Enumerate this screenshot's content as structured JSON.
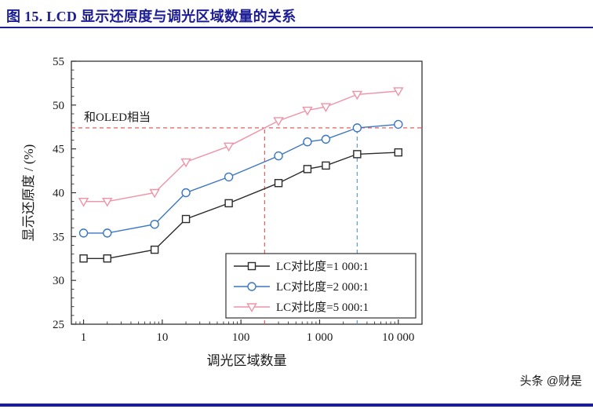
{
  "header": {
    "title": "图 15. LCD 显示还原度与调光区域数量的关系"
  },
  "footer": {
    "watermark": "头条 @财是"
  },
  "theme": {
    "accent": "#1c1c94",
    "frame_color": "#333333",
    "red_dash": "#e06060",
    "blue_dash": "#5b9bd5"
  },
  "chart_data": {
    "type": "line",
    "title": "",
    "xlabel": "调光区域数量",
    "ylabel": "显示还原度 / (%)",
    "x_scale": "log",
    "xlim": [
      0.7,
      20000
    ],
    "ylim": [
      25,
      55
    ],
    "y_ticks": [
      25,
      30,
      35,
      40,
      45,
      50,
      55
    ],
    "x_ticks": [
      {
        "v": 1,
        "label": "1"
      },
      {
        "v": 10,
        "label": "10"
      },
      {
        "v": 100,
        "label": "100"
      },
      {
        "v": 1000,
        "label": "1 000"
      },
      {
        "v": 10000,
        "label": "10 000"
      }
    ],
    "x": [
      1,
      2,
      8,
      20,
      70,
      300,
      700,
      1200,
      3000,
      10000
    ],
    "series": [
      {
        "name": "LC对比度=1 000:1",
        "marker": "square",
        "color": "#2b2b2b",
        "values": [
          32.5,
          32.5,
          33.5,
          37.0,
          38.8,
          41.1,
          42.7,
          43.1,
          44.4,
          44.6
        ]
      },
      {
        "name": "LC对比度=2 000:1",
        "marker": "circle",
        "color": "#3a76c4",
        "values": [
          35.4,
          35.4,
          36.4,
          40.0,
          41.8,
          44.2,
          45.8,
          46.1,
          47.4,
          47.8
        ]
      },
      {
        "name": "LC对比度=5 000:1",
        "marker": "triangle-down",
        "color": "#ef93a7",
        "values": [
          39.0,
          39.0,
          40.0,
          43.5,
          45.3,
          48.2,
          49.4,
          49.8,
          51.2,
          51.6
        ]
      }
    ],
    "annotations": {
      "oled_label": "和OLED相当",
      "h_line": {
        "y": 47.4,
        "color": "#e06060"
      },
      "v_line_red": {
        "x": 200,
        "color": "#e06060"
      },
      "v_line_blue": {
        "x": 3000,
        "color": "#5b9bd5"
      }
    },
    "legend_position": "bottom-right",
    "grid": false
  }
}
